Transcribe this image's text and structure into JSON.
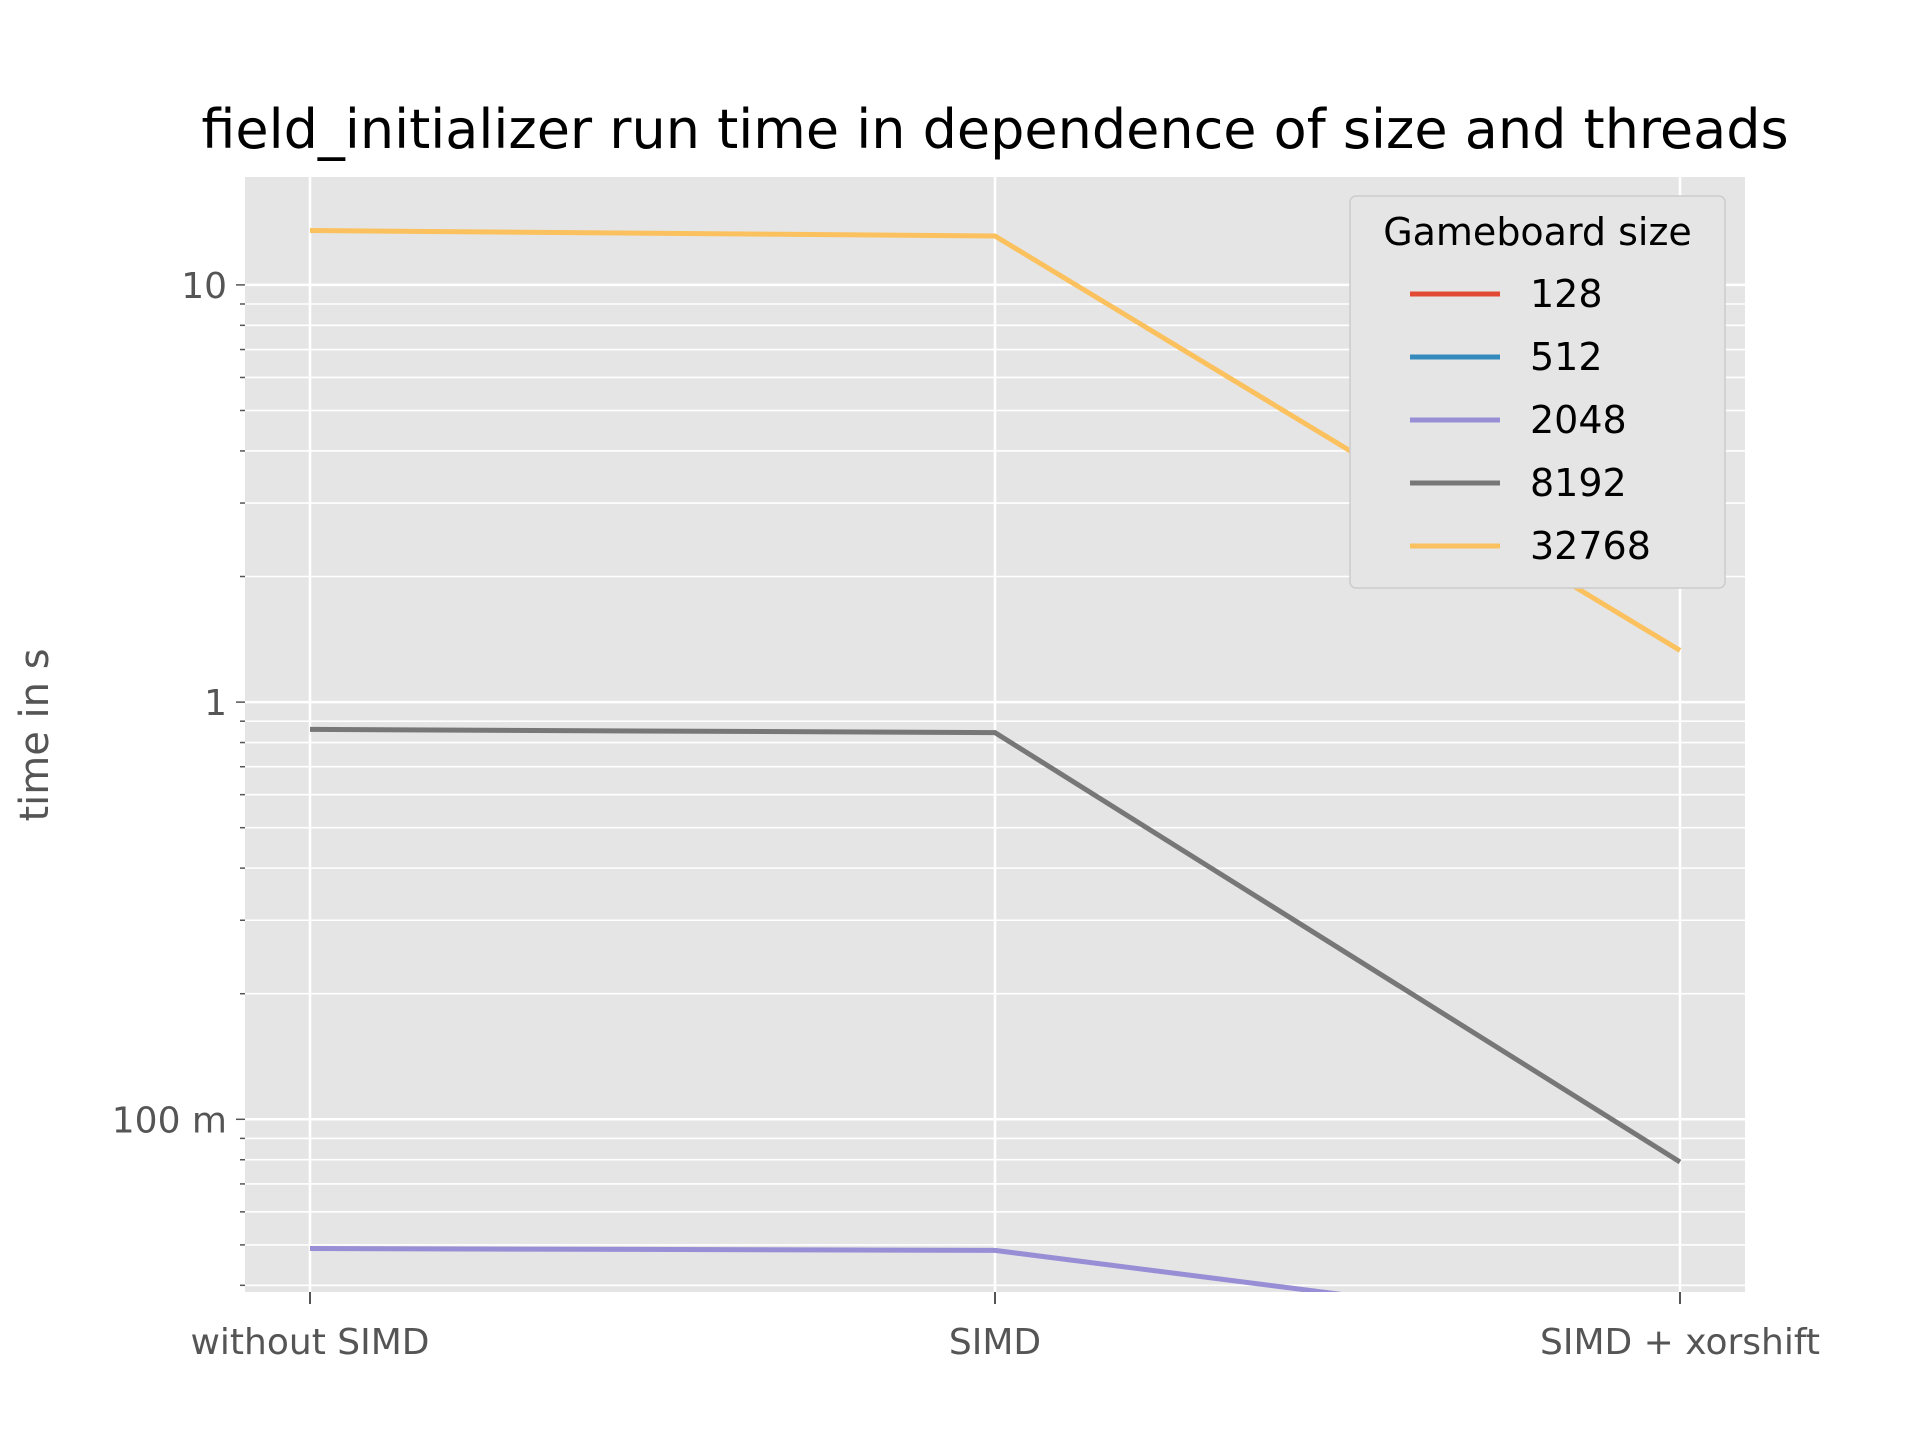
{
  "chart_data": {
    "type": "line",
    "title": "field_initializer run time in dependence of size and threads",
    "xlabel": "",
    "ylabel": "time in s",
    "categories": [
      "without SIMD",
      "SIMD",
      "SIMD + xorshift"
    ],
    "y_scale": "log",
    "ylim": [
      0.04,
      17
    ],
    "y_ticks": [
      {
        "value": 0.1,
        "label": "100 m"
      },
      {
        "value": 1,
        "label": "1"
      },
      {
        "value": 10,
        "label": "10"
      }
    ],
    "grid": true,
    "legend": {
      "title": "Gameboard size",
      "placement": "top-right"
    },
    "series": [
      {
        "name": "128",
        "color": "#E24A33",
        "values": [
          null,
          null,
          null
        ]
      },
      {
        "name": "512",
        "color": "#348ABD",
        "values": [
          null,
          null,
          null
        ]
      },
      {
        "name": "2048",
        "color": "#988ED5",
        "values": [
          0.049,
          0.0485,
          0.03
        ]
      },
      {
        "name": "8192",
        "color": "#777777",
        "values": [
          0.86,
          0.845,
          0.079
        ]
      },
      {
        "name": "32768",
        "color": "#FBC15E",
        "values": [
          13.5,
          13.1,
          1.33
        ]
      }
    ]
  }
}
